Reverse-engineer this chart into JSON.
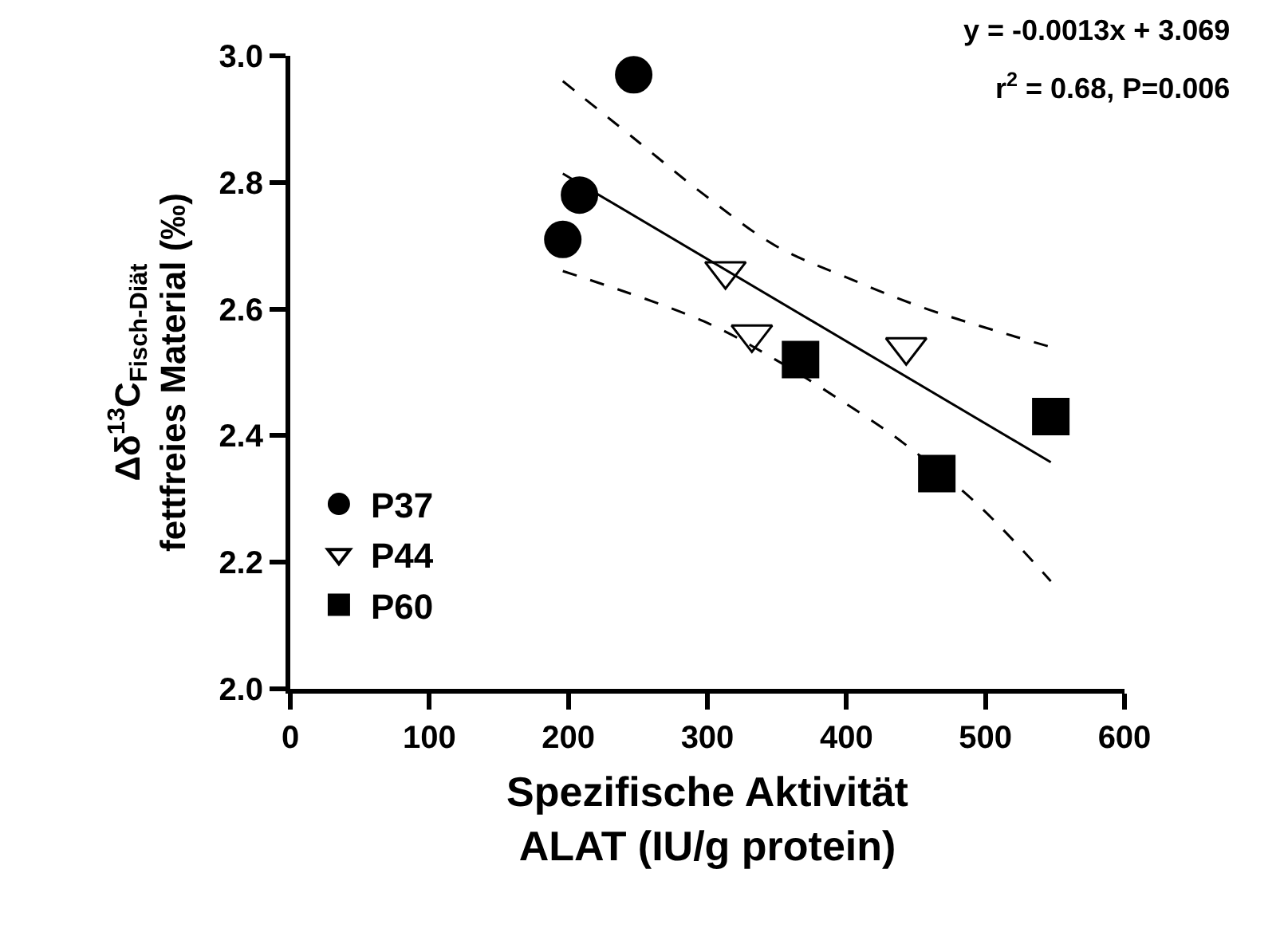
{
  "chart_data": {
    "type": "scatter",
    "xlabel": "Spezifische Aktivität\nALAT (IU/g protein)",
    "ylabel": "Δδ$^{13}$C$_{Fisch-Diät}$\nfettfreies Material (‰)",
    "annotations": [
      "y = -0.0013x + 3.069",
      "r$^{2}$ = 0.68, P=0.006"
    ],
    "xlim": [
      0,
      600
    ],
    "xticks": [
      0,
      100,
      200,
      300,
      400,
      500,
      600
    ],
    "ylim": [
      2.0,
      3.0
    ],
    "yticks": [
      {
        "value": 2.0,
        "label": "2.0"
      },
      2.2,
      2.4,
      2.6,
      2.8,
      {
        "value": 3.0,
        "label": "3.0"
      }
    ],
    "grid": false,
    "legend": "bottom left",
    "series": [
      {
        "name": "P37",
        "marker": "circle",
        "color": "#000000",
        "x": [
          196,
          208,
          247
        ],
        "values": [
          2.71,
          2.78,
          2.97
        ]
      },
      {
        "name": "P44",
        "marker": "triangle",
        "color": "#ffffff",
        "x": [
          313,
          332,
          443
        ],
        "values": [
          2.66,
          2.56,
          2.54
        ]
      },
      {
        "name": "P60",
        "marker": "square",
        "color": "#000000",
        "x": [
          367,
          465,
          547
        ],
        "values": [
          2.52,
          2.34,
          2.43
        ]
      },
      {
        "type": "line",
        "line_style": "solid",
        "color": "#000000",
        "x": [
          196,
          547
        ],
        "values": [
          2.814,
          2.358
        ]
      },
      {
        "type": "line",
        "line_style": "dashed",
        "color": "#000000",
        "x": [
          196,
          247,
          298,
          349,
          400,
          458,
          547
        ],
        "values": [
          2.96,
          2.87,
          2.78,
          2.7,
          2.65,
          2.6,
          2.54
        ]
      },
      {
        "type": "line",
        "line_style": "dashed",
        "color": "#000000",
        "x": [
          196,
          298,
          349,
          400,
          440,
          495,
          547
        ],
        "values": [
          2.66,
          2.58,
          2.52,
          2.45,
          2.39,
          2.29,
          2.17
        ]
      }
    ]
  }
}
